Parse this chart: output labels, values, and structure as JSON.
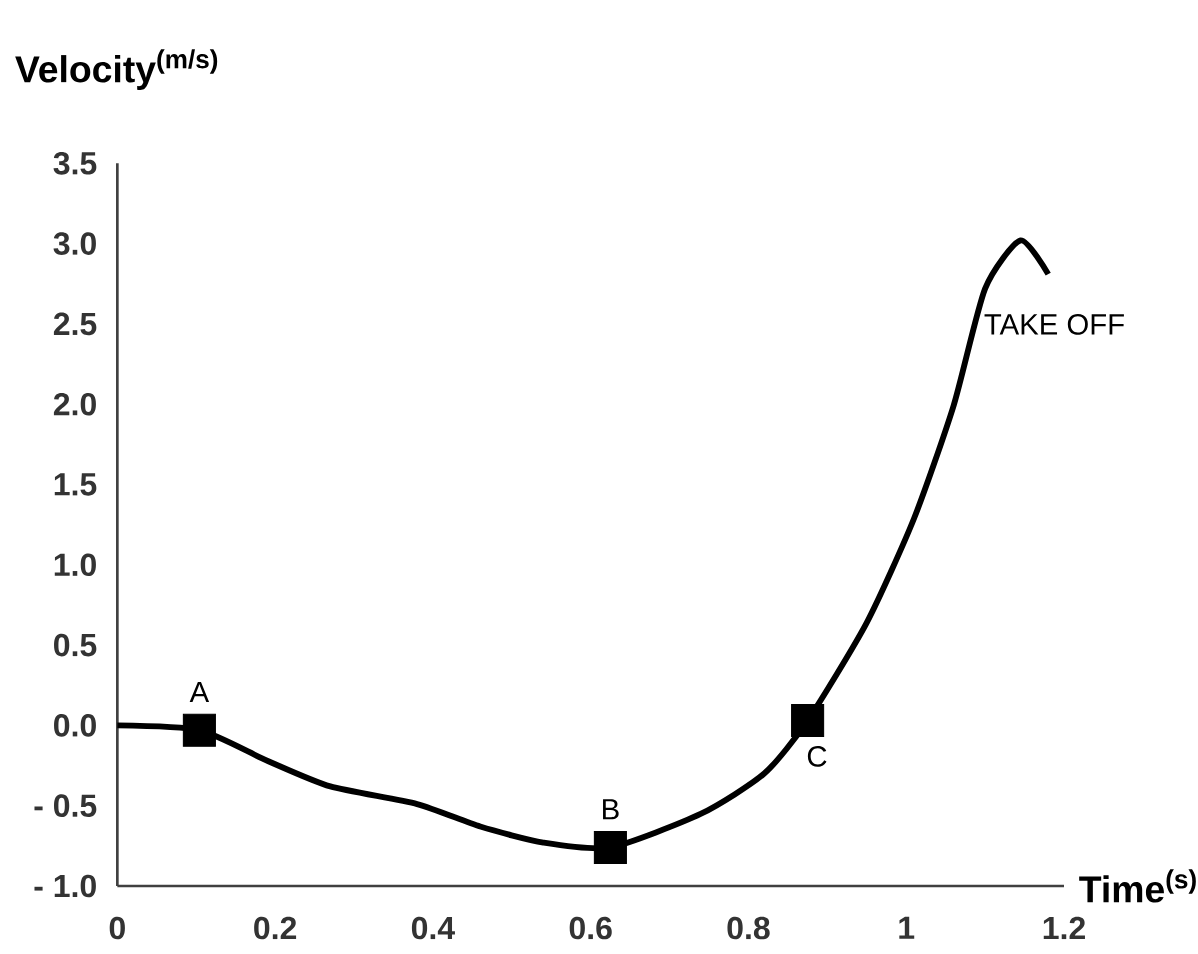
{
  "chart_data": {
    "type": "line",
    "xlabel": "Time$^{(s)}$",
    "ylabel": "Velocity$^{(m/s)}$",
    "xlim": [
      0,
      1.2
    ],
    "ylim": [
      -1,
      3.5
    ],
    "xticks": [
      0,
      0.2,
      0.4,
      0.6,
      0.8,
      1,
      1.2
    ],
    "yticks": [
      {
        "value": 3.5,
        "label": "3.5"
      },
      {
        "value": 3,
        "label": "3.0"
      },
      {
        "value": 2.5,
        "label": "2.5"
      },
      {
        "value": 2,
        "label": "2.0"
      },
      {
        "value": 1.5,
        "label": "1.5"
      },
      {
        "value": 1,
        "label": "1.0"
      },
      {
        "value": 0.5,
        "label": "0.5"
      },
      {
        "value": 0,
        "label": "0.0"
      },
      {
        "value": -0.5,
        "label": "- 0.5"
      },
      {
        "value": -1,
        "label": "- 1.0"
      }
    ],
    "series": [
      {
        "color": "#000000",
        "x": [
          0,
          0.104,
          0.19,
          0.27,
          0.38,
          0.46,
          0.54,
          0.625,
          0.74,
          0.82,
          0.875,
          0.95,
          1.01,
          1.06,
          1.1,
          1.145,
          1.18
        ],
        "values": [
          0,
          -0.03,
          -0.22,
          -0.38,
          -0.49,
          -0.63,
          -0.73,
          -0.76,
          -0.55,
          -0.3,
          0.03,
          0.64,
          1.29,
          1.99,
          2.72,
          3.02,
          2.81
        ]
      },
      {
        "type": "scatter",
        "marker": "square",
        "color": "#000000",
        "x": [
          0.104,
          0.625,
          0.875
        ],
        "values": [
          -0.03,
          -0.76,
          0.03
        ]
      }
    ],
    "annotations": [
      {
        "text": "A",
        "x": 0.104,
        "y": -0.03
      },
      {
        "text": "B",
        "x": 0.625,
        "y": -0.76
      },
      {
        "text": "C",
        "x": 0.875,
        "y": 0.03
      },
      {
        "text": "TAKE OFF",
        "x": 1.1,
        "y": 2.72
      }
    ]
  }
}
